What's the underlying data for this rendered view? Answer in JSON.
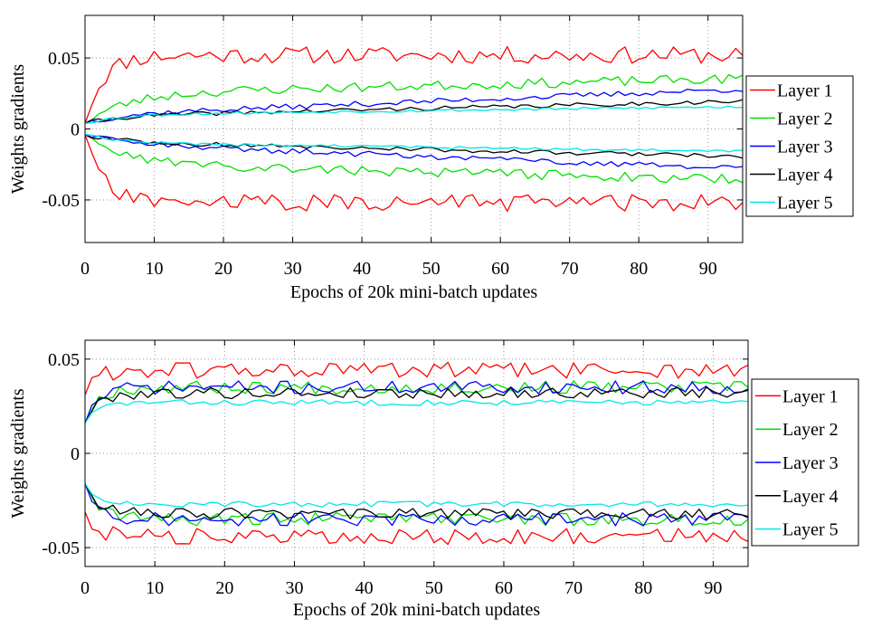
{
  "chart_data": [
    {
      "type": "line",
      "xlabel": "Epochs of 20k mini-batch updates",
      "ylabel": "Weights gradients",
      "xlim": [
        0,
        95
      ],
      "ylim": [
        -0.08,
        0.08
      ],
      "xticks": [
        0,
        10,
        20,
        30,
        40,
        50,
        60,
        70,
        80,
        90
      ],
      "yticks": [
        0.05,
        0,
        -0.05
      ],
      "ytick_labels": [
        "0.05",
        "0",
        "-0.05"
      ],
      "grid": true,
      "legend_position": "right",
      "series": [
        {
          "name": "Layer 1",
          "color": "#ff0000",
          "mode": "rise",
          "start": 0.004,
          "level": 0.052,
          "tau": 2.5,
          "drift": 0.0,
          "noise": 0.006,
          "seed": 11
        },
        {
          "name": "Layer 2",
          "color": "#00e000",
          "mode": "rise",
          "start": 0.004,
          "level": 0.025,
          "tau": 6,
          "drift": 0.00011,
          "noise": 0.0035,
          "seed": 23
        },
        {
          "name": "Layer 3",
          "color": "#0000ff",
          "mode": "rise",
          "start": 0.004,
          "level": 0.01,
          "tau": 5,
          "drift": 0.00019,
          "noise": 0.002,
          "seed": 37
        },
        {
          "name": "Layer 4",
          "color": "#000000",
          "mode": "rise",
          "start": 0.004,
          "level": 0.009,
          "tau": 5,
          "drift": 0.00011,
          "noise": 0.0015,
          "seed": 41
        },
        {
          "name": "Layer 5",
          "color": "#00e8e8",
          "mode": "rise",
          "start": 0.004,
          "level": 0.01,
          "tau": 5,
          "drift": 6e-05,
          "noise": 0.001,
          "seed": 53
        }
      ]
    },
    {
      "type": "line",
      "xlabel": "Epochs of 20k mini-batch updates",
      "ylabel": "Weights gradients",
      "xlim": [
        0,
        95
      ],
      "ylim": [
        -0.06,
        0.06
      ],
      "xticks": [
        0,
        10,
        20,
        30,
        40,
        50,
        60,
        70,
        80,
        90
      ],
      "yticks": [
        0.05,
        0,
        -0.05
      ],
      "ytick_labels": [
        "0.05",
        "0",
        "-0.05"
      ],
      "grid": true,
      "legend_position": "right",
      "series": [
        {
          "name": "Layer 1",
          "color": "#ff0000",
          "mode": "flat",
          "start": 0.031,
          "level": 0.044,
          "tau": 1.5,
          "drift": 0.0,
          "noise": 0.0045,
          "seed": 61
        },
        {
          "name": "Layer 2",
          "color": "#00e000",
          "mode": "flat",
          "start": 0.016,
          "level": 0.035,
          "tau": 1.8,
          "drift": 0.0,
          "noise": 0.0035,
          "seed": 67
        },
        {
          "name": "Layer 3",
          "color": "#0000ff",
          "mode": "flat",
          "start": 0.016,
          "level": 0.035,
          "tau": 1.8,
          "drift": 0.0,
          "noise": 0.0035,
          "seed": 71
        },
        {
          "name": "Layer 4",
          "color": "#000000",
          "mode": "flat",
          "start": 0.016,
          "level": 0.032,
          "tau": 1.8,
          "drift": 0.0,
          "noise": 0.003,
          "seed": 79
        },
        {
          "name": "Layer 5",
          "color": "#00e8e8",
          "mode": "flat",
          "start": 0.016,
          "level": 0.027,
          "tau": 1.8,
          "drift": 0.0,
          "noise": 0.0015,
          "seed": 83
        }
      ]
    }
  ]
}
